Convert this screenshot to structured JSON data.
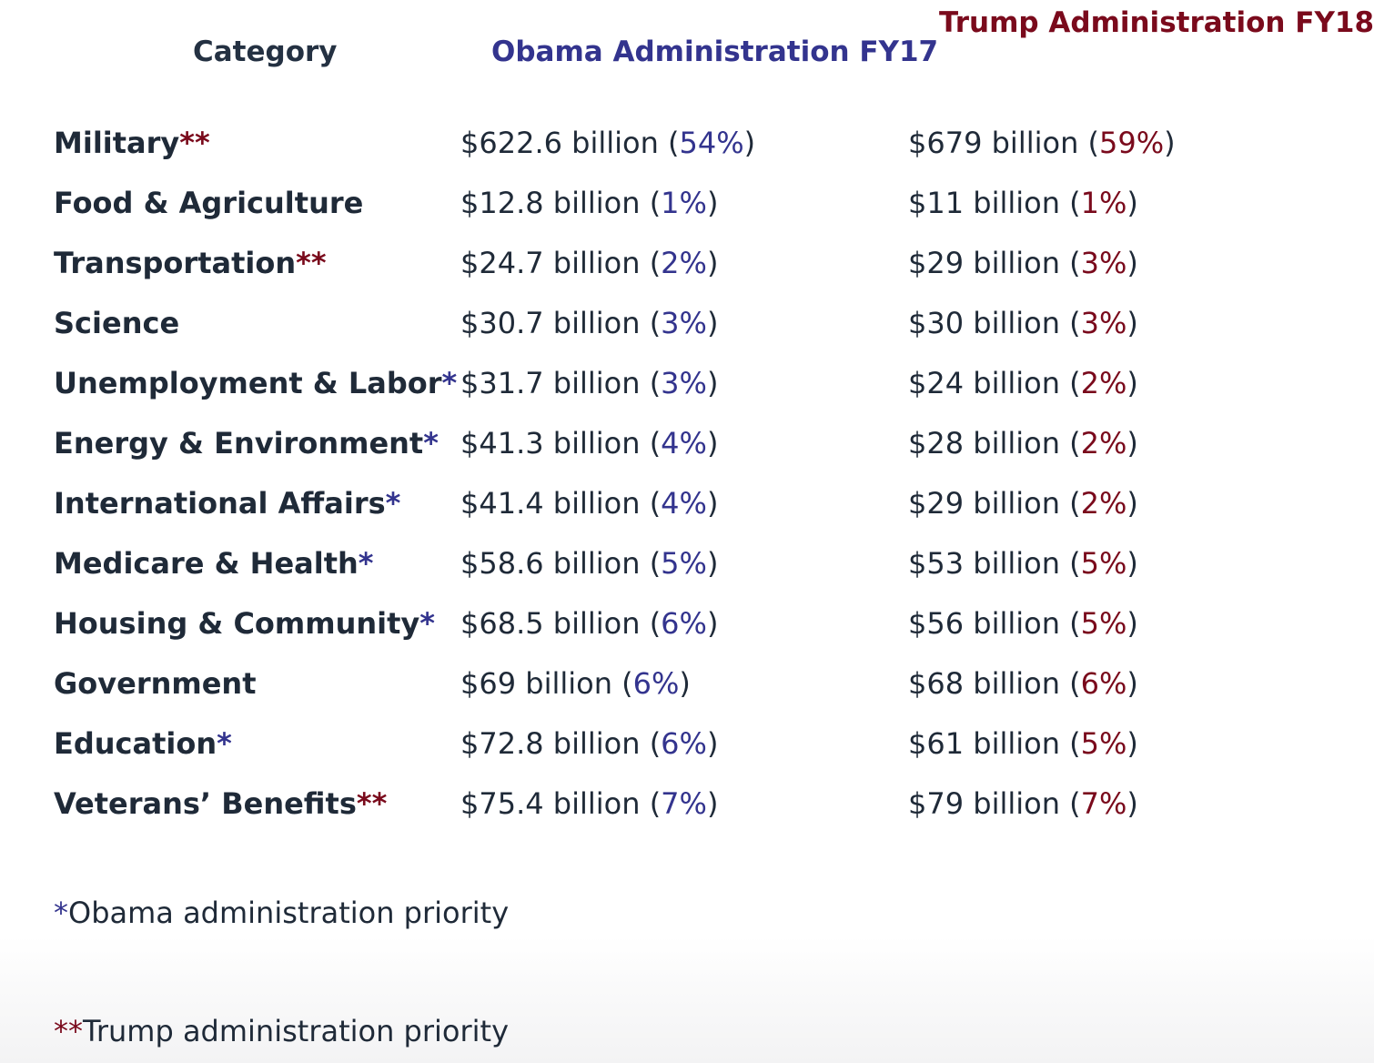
{
  "headers": {
    "category": "Category",
    "obama": "Obama Administration FY17",
    "trump": "Trump Administration FY18"
  },
  "colors": {
    "obama": "#33348e",
    "trump": "#7a0a1c",
    "text": "#1f2a38"
  },
  "rows": [
    {
      "category": "Military",
      "marker": "**",
      "obama_amount": "$622.6 billion",
      "obama_pct": "54%",
      "trump_amount": "$679 billion",
      "trump_pct": "59%"
    },
    {
      "category": "Food & Agriculture",
      "marker": "",
      "obama_amount": "$12.8 billion",
      "obama_pct": "1%",
      "trump_amount": "$11 billion",
      "trump_pct": "1%"
    },
    {
      "category": "Transportation",
      "marker": "**",
      "obama_amount": "$24.7 billion",
      "obama_pct": "2%",
      "trump_amount": "$29 billion",
      "trump_pct": "3%"
    },
    {
      "category": "Science",
      "marker": "",
      "obama_amount": "$30.7 billion",
      "obama_pct": "3%",
      "trump_amount": "$30 billion",
      "trump_pct": "3%"
    },
    {
      "category": "Unemployment & Labor",
      "marker": "*",
      "obama_amount": "$31.7 billion",
      "obama_pct": "3%",
      "trump_amount": "$24 billion",
      "trump_pct": "2%"
    },
    {
      "category": "Energy & Environment",
      "marker": "*",
      "obama_amount": "$41.3 billion",
      "obama_pct": "4%",
      "trump_amount": "$28 billion",
      "trump_pct": "2%"
    },
    {
      "category": "International Affairs",
      "marker": "*",
      "obama_amount": "$41.4 billion",
      "obama_pct": "4%",
      "trump_amount": "$29 billion",
      "trump_pct": "2%"
    },
    {
      "category": "Medicare & Health",
      "marker": "*",
      "obama_amount": "$58.6 billion",
      "obama_pct": "5%",
      "trump_amount": "$53 billion",
      "trump_pct": "5%"
    },
    {
      "category": "Housing & Community",
      "marker": "*",
      "obama_amount": "$68.5 billion",
      "obama_pct": "6%",
      "trump_amount": "$56 billion",
      "trump_pct": "5%"
    },
    {
      "category": "Government",
      "marker": "",
      "obama_amount": "$69 billion",
      "obama_pct": "6%",
      "trump_amount": "$68 billion",
      "trump_pct": "6%"
    },
    {
      "category": "Education",
      "marker": "*",
      "obama_amount": "$72.8 billion",
      "obama_pct": "6%",
      "trump_amount": "$61 billion",
      "trump_pct": "5%"
    },
    {
      "category": "Veterans’ Benefits",
      "marker": "**",
      "obama_amount": "$75.4 billion",
      "obama_pct": "7%",
      "trump_amount": "$79 billion",
      "trump_pct": "7%"
    }
  ],
  "footnotes": {
    "obama_marker": "*",
    "obama_text": "Obama administration priority",
    "trump_marker": "**",
    "trump_text": "Trump administration priority"
  }
}
